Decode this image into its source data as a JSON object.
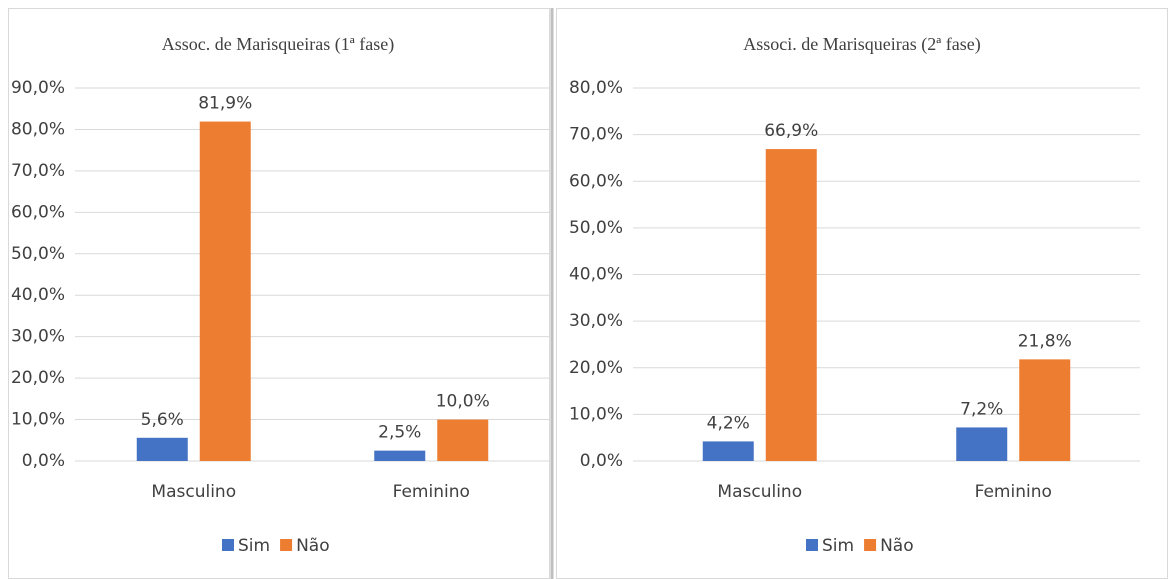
{
  "chart_data": [
    {
      "type": "bar",
      "title": "Assoc. de Marisqueiras (1ª fase)",
      "categories": [
        "Masculino",
        "Feminino"
      ],
      "series": [
        {
          "name": "Sim",
          "color": "#4472c4",
          "values": [
            5.6,
            2.5
          ],
          "value_labels": [
            "5,6%",
            "2,5%"
          ]
        },
        {
          "name": "Não",
          "color": "#ed7d31",
          "values": [
            81.9,
            10.0
          ],
          "value_labels": [
            "81,9%",
            "10,0%"
          ]
        }
      ],
      "ylim": [
        0,
        90
      ],
      "yticks": [
        {
          "value": 0,
          "label": "0,0%"
        },
        {
          "value": 10,
          "label": "10,0%"
        },
        {
          "value": 20,
          "label": "20,0%"
        },
        {
          "value": 30,
          "label": "30,0%"
        },
        {
          "value": 40,
          "label": "40,0%"
        },
        {
          "value": 50,
          "label": "50,0%"
        },
        {
          "value": 60,
          "label": "60,0%"
        },
        {
          "value": 70,
          "label": "70,0%"
        },
        {
          "value": 80,
          "label": "80,0%"
        },
        {
          "value": 90,
          "label": "90,0%"
        }
      ],
      "grid": true,
      "legend": "bottom"
    },
    {
      "type": "bar",
      "title": "Associ. de Marisqueiras (2ª fase)",
      "categories": [
        "Masculino",
        "Feminino"
      ],
      "series": [
        {
          "name": "Sim",
          "color": "#4472c4",
          "values": [
            4.2,
            7.2
          ],
          "value_labels": [
            "4,2%",
            "7,2%"
          ]
        },
        {
          "name": "Não",
          "color": "#ed7d31",
          "values": [
            66.9,
            21.8
          ],
          "value_labels": [
            "66,9%",
            "21,8%"
          ]
        }
      ],
      "ylim": [
        0,
        80
      ],
      "yticks": [
        {
          "value": 0,
          "label": "0,0%"
        },
        {
          "value": 10,
          "label": "10,0%"
        },
        {
          "value": 20,
          "label": "20,0%"
        },
        {
          "value": 30,
          "label": "30,0%"
        },
        {
          "value": 40,
          "label": "40,0%"
        },
        {
          "value": 50,
          "label": "50,0%"
        },
        {
          "value": 60,
          "label": "60,0%"
        },
        {
          "value": 70,
          "label": "70,0%"
        },
        {
          "value": 80,
          "label": "80,0%"
        }
      ],
      "grid": true,
      "legend": "bottom"
    }
  ]
}
